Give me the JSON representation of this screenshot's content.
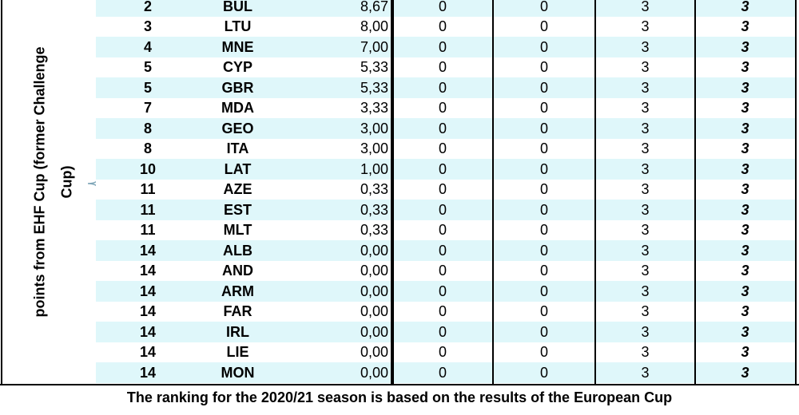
{
  "side_label": {
    "lines": [
      "points from EHF Cup (former Challenge",
      "Cup)"
    ]
  },
  "table": {
    "rows": [
      [
        "2",
        "BUL",
        "8,67",
        "0",
        "0",
        "3",
        "3"
      ],
      [
        "3",
        "LTU",
        "8,00",
        "0",
        "0",
        "3",
        "3"
      ],
      [
        "4",
        "MNE",
        "7,00",
        "0",
        "0",
        "3",
        "3"
      ],
      [
        "5",
        "CYP",
        "5,33",
        "0",
        "0",
        "3",
        "3"
      ],
      [
        "5",
        "GBR",
        "5,33",
        "0",
        "0",
        "3",
        "3"
      ],
      [
        "7",
        "MDA",
        "3,33",
        "0",
        "0",
        "3",
        "3"
      ],
      [
        "8",
        "GEO",
        "3,00",
        "0",
        "0",
        "3",
        "3"
      ],
      [
        "8",
        "ITA",
        "3,00",
        "0",
        "0",
        "3",
        "3"
      ],
      [
        "10",
        "LAT",
        "1,00",
        "0",
        "0",
        "3",
        "3"
      ],
      [
        "11",
        "AZE",
        "0,33",
        "0",
        "0",
        "3",
        "3"
      ],
      [
        "11",
        "EST",
        "0,33",
        "0",
        "0",
        "3",
        "3"
      ],
      [
        "11",
        "MLT",
        "0,33",
        "0",
        "0",
        "3",
        "3"
      ],
      [
        "14",
        "ALB",
        "0,00",
        "0",
        "0",
        "3",
        "3"
      ],
      [
        "14",
        "AND",
        "0,00",
        "0",
        "0",
        "3",
        "3"
      ],
      [
        "14",
        "ARM",
        "0,00",
        "0",
        "0",
        "3",
        "3"
      ],
      [
        "14",
        "FAR",
        "0,00",
        "0",
        "0",
        "3",
        "3"
      ],
      [
        "14",
        "IRL",
        "0,00",
        "0",
        "0",
        "3",
        "3"
      ],
      [
        "14",
        "LIE",
        "0,00",
        "0",
        "0",
        "3",
        "3"
      ],
      [
        "14",
        "MON",
        "0,00",
        "0",
        "0",
        "3",
        "3"
      ]
    ]
  },
  "footer": {
    "text": "The ranking for the 2020/21 season is based on the results of the European Cup"
  }
}
